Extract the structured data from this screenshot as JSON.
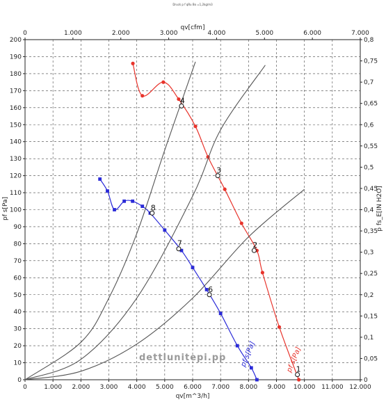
{
  "chart_data": {
    "type": "line",
    "title": "Druck p f qRu  Bo  =1,2kg/m3",
    "watermark": "dettlunitepi.pp",
    "x_bottom": {
      "label": "qv[m^3/h]",
      "min": 0,
      "max": 12000,
      "ticks": [
        "0",
        "1.000",
        "2.000",
        "3.000",
        "4.000",
        "5.000",
        "6.000",
        "7.000",
        "8.000",
        "9.000",
        "10.000",
        "11.000",
        "12.000"
      ]
    },
    "x_top": {
      "label": "qv[cfm]",
      "min": 0,
      "max": 7000,
      "ticks": [
        "0",
        "1.000",
        "2.000",
        "3.000",
        "4.000",
        "5.000",
        "6.000",
        "7.000"
      ]
    },
    "y_left": {
      "label": "pf s[Pa]",
      "min": 0,
      "max": 200,
      "ticks": [
        "0",
        "10",
        "20",
        "30",
        "40",
        "50",
        "60",
        "70",
        "80",
        "90",
        "100",
        "110",
        "120",
        "130",
        "140",
        "150",
        "160",
        "170",
        "180",
        "190",
        "200"
      ]
    },
    "y_right": {
      "label": "p fs_E[IN H2O]",
      "min": 0,
      "max": 0.8,
      "ticks": [
        "0",
        "0,05",
        "0,1",
        "0,15",
        "0,2",
        "0,25",
        "0,3",
        "0,35",
        "0,4",
        "0,45",
        "0,5",
        "0,55",
        "0,6",
        "0,65",
        "0,7",
        "0,75",
        "0,8"
      ]
    },
    "grid": true,
    "series": [
      {
        "name": "pf s[Pa]",
        "color": "#e8332b",
        "marker": "circle",
        "points": [
          [
            3860,
            186
          ],
          [
            4200,
            167
          ],
          [
            4950,
            175
          ],
          [
            5500,
            165
          ],
          [
            6100,
            149
          ],
          [
            6550,
            131
          ],
          [
            7150,
            112
          ],
          [
            7750,
            92
          ],
          [
            8300,
            76
          ],
          [
            8500,
            63
          ],
          [
            9100,
            31
          ],
          [
            9800,
            0
          ]
        ]
      },
      {
        "name": "pf s[Pa]",
        "color": "#2a2ad8",
        "marker": "square",
        "points": [
          [
            2680,
            118
          ],
          [
            2950,
            111
          ],
          [
            3200,
            100
          ],
          [
            3550,
            105
          ],
          [
            3850,
            105
          ],
          [
            4200,
            102
          ],
          [
            4480,
            98
          ],
          [
            5000,
            88
          ],
          [
            5600,
            76
          ],
          [
            6000,
            66
          ],
          [
            6500,
            53
          ],
          [
            7000,
            39
          ],
          [
            7600,
            20
          ],
          [
            8100,
            7
          ],
          [
            8300,
            0
          ]
        ]
      },
      {
        "name": "",
        "color": "#555555",
        "marker": "none",
        "points": [
          [
            0,
            0
          ],
          [
            2000,
            22
          ],
          [
            3000,
            48
          ],
          [
            4000,
            86
          ],
          [
            5000,
            135
          ],
          [
            6100,
            187
          ]
        ]
      },
      {
        "name": "",
        "color": "#555555",
        "marker": "none",
        "points": [
          [
            0,
            0
          ],
          [
            2000,
            12
          ],
          [
            4000,
            48
          ],
          [
            6000,
            108
          ],
          [
            7000,
            147
          ],
          [
            8600,
            185
          ]
        ]
      },
      {
        "name": "",
        "color": "#555555",
        "marker": "none",
        "points": [
          [
            0,
            0
          ],
          [
            2000,
            5
          ],
          [
            4000,
            21
          ],
          [
            6000,
            48
          ],
          [
            8000,
            84
          ],
          [
            10000,
            112
          ]
        ]
      }
    ],
    "operating_points": [
      {
        "label": "1",
        "x": 9750,
        "y": 3
      },
      {
        "label": "2",
        "x": 8200,
        "y": 76
      },
      {
        "label": "3",
        "x": 6900,
        "y": 120
      },
      {
        "label": "4",
        "x": 5600,
        "y": 161
      },
      {
        "label": "6",
        "x": 6600,
        "y": 50
      },
      {
        "label": "7",
        "x": 5500,
        "y": 77
      },
      {
        "label": "8",
        "x": 4550,
        "y": 98
      }
    ]
  }
}
